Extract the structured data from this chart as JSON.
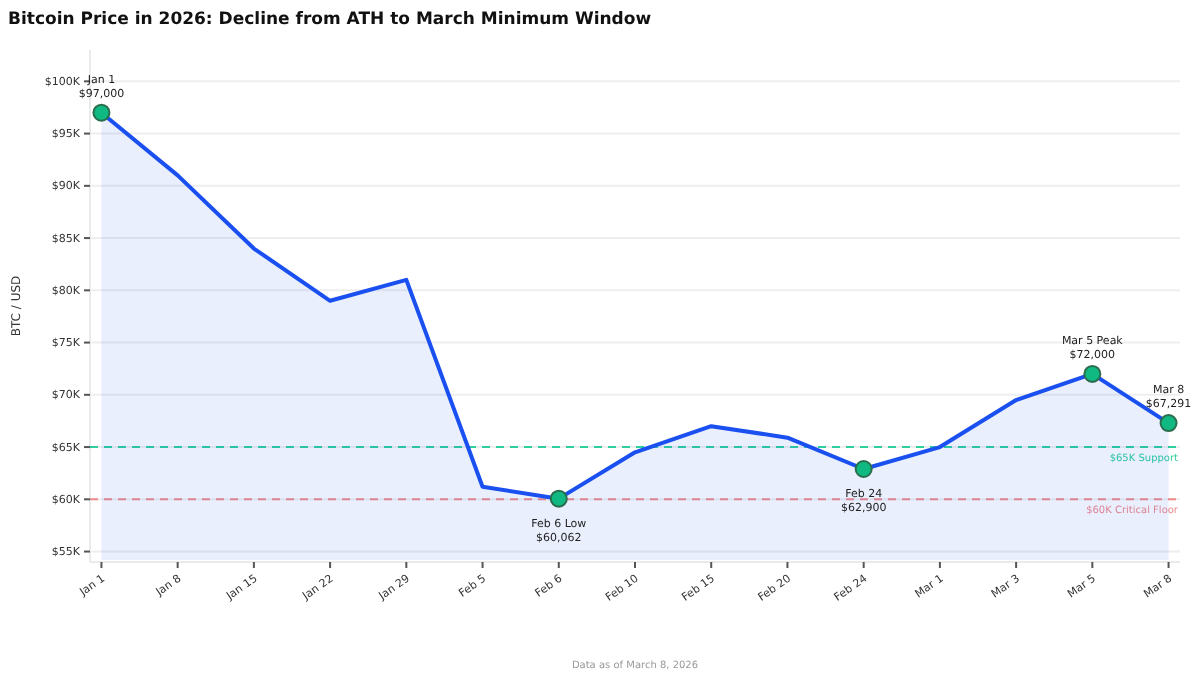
{
  "chart_data": {
    "type": "area",
    "title": "Bitcoin Price in 2026: Decline from ATH to March Minimum Window",
    "ylabel": "BTC / USD",
    "categories": [
      "Jan 1",
      "Jan 8",
      "Jan 15",
      "Jan 22",
      "Jan 29",
      "Feb 5",
      "Feb 6",
      "Feb 10",
      "Feb 15",
      "Feb 20",
      "Feb 24",
      "Mar 1",
      "Mar 3",
      "Mar 5",
      "Mar 8"
    ],
    "series": [
      {
        "marker": "none",
        "color": "#1a4ff0",
        "values": [
          97000,
          91000,
          84000,
          79000,
          81000,
          61200,
          60062,
          64500,
          67000,
          65900,
          62900,
          65000,
          69500,
          72000,
          67291
        ]
      },
      {
        "type": "scatter",
        "marker": "circle",
        "color": "#10b981",
        "x": [
          "Jan 1",
          "Feb 6",
          "Feb 24",
          "Mar 5",
          "Mar 8"
        ],
        "values": [
          97000,
          60062,
          62900,
          72000,
          67291
        ]
      }
    ],
    "ylim": [
      54000,
      103000
    ],
    "yticks": [
      {
        "value": 55000,
        "label": "$55K"
      },
      {
        "value": 60000,
        "label": "$60K"
      },
      {
        "value": 65000,
        "label": "$65K"
      },
      {
        "value": 70000,
        "label": "$70K"
      },
      {
        "value": 75000,
        "label": "$75K"
      },
      {
        "value": 80000,
        "label": "$80K"
      },
      {
        "value": 85000,
        "label": "$85K"
      },
      {
        "value": 90000,
        "label": "$90K"
      },
      {
        "value": 95000,
        "label": "$95K"
      },
      {
        "value": 100000,
        "label": "$100K"
      }
    ],
    "grid": "y",
    "line_style": "solid",
    "ref_lines": [
      {
        "axis": "y",
        "value": 65000,
        "label": "$65K Support",
        "color": "#2ecf9f",
        "line_style": "dashed"
      },
      {
        "axis": "y",
        "value": 60000,
        "label": "$60K Critical Floor",
        "color": "#f08a8a",
        "line_style": "dashed"
      }
    ],
    "annotations": [
      {
        "text": "Jan 1\n$97,000",
        "x": "Jan 1",
        "y": 97000
      },
      {
        "text": "Feb 6 Low\n$60,062",
        "x": "Feb 6",
        "y": 60062
      },
      {
        "text": "Feb 24\n$62,900",
        "x": "Feb 24",
        "y": 62900
      },
      {
        "text": "Mar 5 Peak\n$72,000",
        "x": "Mar 5",
        "y": 72000
      },
      {
        "text": "Mar 8\n$67,291",
        "x": "Mar 8",
        "y": 67291
      },
      "Data as of March 8, 2026"
    ]
  }
}
